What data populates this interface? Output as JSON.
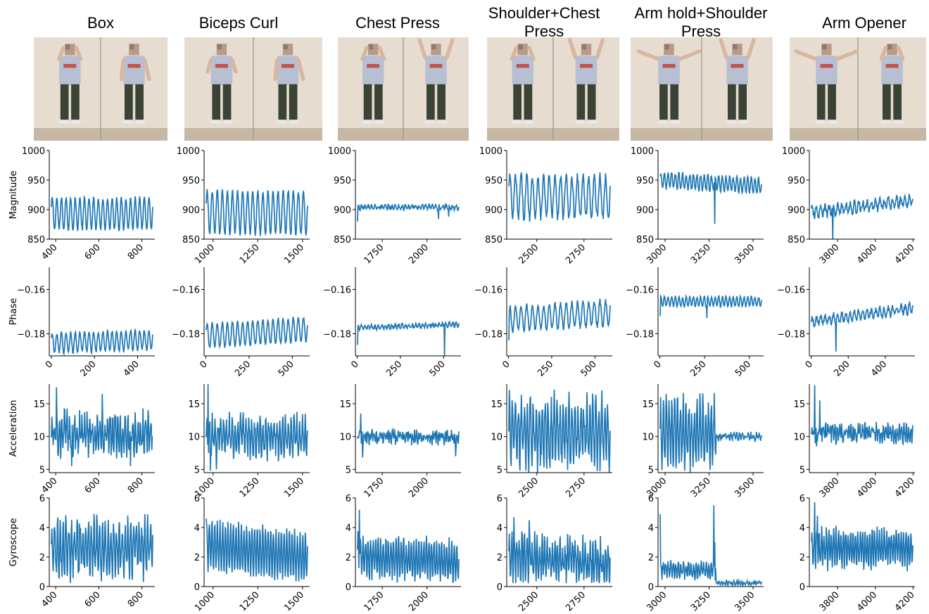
{
  "figure": {
    "row_labels": [
      "Magnitude",
      "Phase",
      "Acceleration",
      "Gyroscope"
    ],
    "colors": {
      "line": "#1f77b4",
      "axis": "#000000",
      "wall": "#e6ddd0",
      "shirt": "#b7bfd3",
      "pants": "#3b4236",
      "floor": "#c7b8a6"
    }
  },
  "exercises": [
    {
      "title": "Box"
    },
    {
      "title": "Biceps Curl"
    },
    {
      "title": "Chest Press"
    },
    {
      "title": "Shoulder+Chest Press"
    },
    {
      "title": "Arm hold+Shoulder Press"
    },
    {
      "title": "Arm Opener"
    }
  ],
  "chart_data": [
    {
      "type": "line",
      "exercise": "Box",
      "ylabel": "Magnitude",
      "xlim": [
        370,
        860
      ],
      "ylim": [
        850,
        1000
      ],
      "xticks": [
        400,
        600,
        800
      ],
      "yticks": [
        850,
        900,
        950,
        1000
      ],
      "signal": {
        "base": 893,
        "amp": 27,
        "cycles": 22,
        "noise": 3,
        "trend": 0
      }
    },
    {
      "type": "line",
      "exercise": "Biceps Curl",
      "ylabel": "",
      "xlim": [
        950,
        1540
      ],
      "ylim": [
        850,
        1000
      ],
      "xticks": [
        1000,
        1250,
        1500
      ],
      "yticks": [
        850,
        900,
        950,
        1000
      ],
      "signal": {
        "base": 895,
        "amp": 37,
        "cycles": 20,
        "noise": 3,
        "trend": 0
      }
    },
    {
      "type": "line",
      "exercise": "Chest Press",
      "ylabel": "",
      "xlim": [
        1600,
        2190
      ],
      "ylim": [
        850,
        1000
      ],
      "xticks": [
        1750,
        2000
      ],
      "yticks": [
        850,
        900,
        950,
        1000
      ],
      "signal": {
        "base": 904,
        "amp": 3,
        "cycles": 30,
        "noise": 3,
        "trend": 0,
        "start": 880,
        "spikes": [
          [
            0.8,
            884
          ],
          [
            0.9,
            888
          ]
        ]
      }
    },
    {
      "type": "line",
      "exercise": "Shoulder+Chest Press",
      "ylabel": "",
      "xlim": [
        2340,
        2900
      ],
      "ylim": [
        850,
        1000
      ],
      "xticks": [
        2500,
        2750
      ],
      "yticks": [
        850,
        900,
        950,
        1000
      ],
      "signal": {
        "base": 922,
        "amp": 35,
        "cycles": 18,
        "noise": 8,
        "trend": 0
      }
    },
    {
      "type": "line",
      "exercise": "Arm hold+Shoulder Press",
      "ylabel": "",
      "xlim": [
        2960,
        3560
      ],
      "ylim": [
        850,
        1000
      ],
      "xticks": [
        3000,
        3250,
        3500
      ],
      "yticks": [
        850,
        900,
        950,
        1000
      ],
      "signal": {
        "base": 945,
        "amp": 13,
        "cycles": 28,
        "noise": 3,
        "trend": -10,
        "spikes": [
          [
            0.54,
            876
          ]
        ]
      }
    },
    {
      "type": "line",
      "exercise": "Arm Opener",
      "ylabel": "",
      "xlim": [
        3650,
        4210
      ],
      "ylim": [
        850,
        1000
      ],
      "xticks": [
        3800,
        4000,
        4200
      ],
      "yticks": [
        850,
        900,
        950,
        1000
      ],
      "signal": {
        "base": 905,
        "amp": 8,
        "cycles": 24,
        "noise": 6,
        "trend": 20,
        "spikes": [
          [
            0.21,
            848
          ]
        ]
      }
    },
    {
      "type": "line",
      "exercise": "Box",
      "ylabel": "Phase",
      "xlim": [
        -10,
        480
      ],
      "ylim": [
        -0.19,
        -0.15
      ],
      "xticks": [
        0,
        200,
        400
      ],
      "yticks": [
        -0.18,
        -0.16
      ],
      "signal": {
        "base": -0.1835,
        "amp": 0.0045,
        "cycles": 22,
        "noise": 0.0008,
        "trend": 0.0015
      }
    },
    {
      "type": "line",
      "exercise": "Biceps Curl",
      "ylabel": "",
      "xlim": [
        -10,
        600
      ],
      "ylim": [
        -0.19,
        -0.15
      ],
      "xticks": [
        0,
        250,
        500
      ],
      "yticks": [
        -0.18,
        -0.16
      ],
      "signal": {
        "base": -0.1795,
        "amp": 0.0055,
        "cycles": 20,
        "noise": 0.0006,
        "trend": 0.003
      }
    },
    {
      "type": "line",
      "exercise": "Chest Press",
      "ylabel": "",
      "xlim": [
        -10,
        600
      ],
      "ylim": [
        -0.19,
        -0.15
      ],
      "xticks": [
        0,
        250,
        500
      ],
      "yticks": [
        -0.18,
        -0.16
      ],
      "signal": {
        "base": -0.1765,
        "amp": 0.0008,
        "cycles": 30,
        "noise": 0.0007,
        "trend": 0.0015,
        "start": -0.185,
        "spikes": [
          [
            0.86,
            -0.19
          ]
        ]
      }
    },
    {
      "type": "line",
      "exercise": "Shoulder+Chest Press",
      "ylabel": "",
      "xlim": [
        -10,
        600
      ],
      "ylim": [
        -0.19,
        -0.15
      ],
      "xticks": [
        0,
        250,
        500
      ],
      "yticks": [
        -0.18,
        -0.16
      ],
      "signal": {
        "base": -0.172,
        "amp": 0.0055,
        "cycles": 18,
        "noise": 0.0012,
        "trend": 0.003,
        "start": -0.183
      }
    },
    {
      "type": "line",
      "exercise": "Arm hold+Shoulder Press",
      "ylabel": "",
      "xlim": [
        -10,
        580
      ],
      "ylim": [
        -0.19,
        -0.15
      ],
      "xticks": [
        0,
        250,
        500
      ],
      "yticks": [
        -0.18,
        -0.16
      ],
      "signal": {
        "base": -0.1655,
        "amp": 0.0022,
        "cycles": 28,
        "noise": 0.0005,
        "trend": 0,
        "start": -0.172,
        "spikes": [
          [
            0.46,
            -0.173
          ]
        ]
      }
    },
    {
      "type": "line",
      "exercise": "Arm Opener",
      "ylabel": "",
      "xlim": [
        -10,
        560
      ],
      "ylim": [
        -0.19,
        -0.15
      ],
      "xticks": [
        0,
        200,
        400
      ],
      "yticks": [
        -0.18,
        -0.16
      ],
      "signal": {
        "base": -0.1715,
        "amp": 0.002,
        "cycles": 24,
        "noise": 0.0012,
        "trend": 0.006,
        "spikes": [
          [
            0.24,
            -0.188
          ]
        ]
      }
    },
    {
      "type": "line",
      "exercise": "Box",
      "ylabel": "Acceleration",
      "xlim": [
        370,
        860
      ],
      "ylim": [
        4.5,
        18
      ],
      "xticks": [
        400,
        600,
        800
      ],
      "yticks": [
        5,
        10,
        15
      ],
      "signal": {
        "base": 10.5,
        "amp": 2.3,
        "cycles": 40,
        "noise": 1.8,
        "trend": 0,
        "spikes": [
          [
            0.05,
            17.5
          ],
          [
            0.2,
            5.5
          ],
          [
            0.5,
            16.5
          ],
          [
            0.78,
            5.5
          ]
        ]
      }
    },
    {
      "type": "line",
      "exercise": "Biceps Curl",
      "ylabel": "",
      "xlim": [
        950,
        1540
      ],
      "ylim": [
        4.5,
        18
      ],
      "xticks": [
        1000,
        1250,
        1500
      ],
      "yticks": [
        5,
        10,
        15
      ],
      "signal": {
        "base": 10,
        "amp": 2.5,
        "cycles": 36,
        "noise": 1.4,
        "trend": 0,
        "spikes": [
          [
            0.02,
            18
          ],
          [
            0.04,
            4.8
          ],
          [
            0.1,
            5
          ]
        ]
      }
    },
    {
      "type": "line",
      "exercise": "Chest Press",
      "ylabel": "",
      "xlim": [
        1600,
        2190
      ],
      "ylim": [
        4.5,
        18
      ],
      "xticks": [
        1750,
        2000
      ],
      "yticks": [
        5,
        10,
        15
      ],
      "signal": {
        "base": 10,
        "amp": 0.6,
        "cycles": 50,
        "noise": 0.8,
        "trend": 0,
        "spikes": [
          [
            0.03,
            13.5
          ],
          [
            0.05,
            6.8
          ],
          [
            0.97,
            7
          ]
        ]
      }
    },
    {
      "type": "line",
      "exercise": "Shoulder+Chest Press",
      "ylabel": "",
      "xlim": [
        2340,
        2900
      ],
      "ylim": [
        4.5,
        18
      ],
      "xticks": [
        2500,
        2750
      ],
      "yticks": [
        5,
        10,
        15
      ],
      "signal": {
        "base": 10.5,
        "amp": 4.5,
        "cycles": 34,
        "noise": 2.4,
        "trend": 0
      }
    },
    {
      "type": "line",
      "exercise": "Arm hold+Shoulder Press",
      "ylabel": "",
      "xlim": [
        2960,
        3560
      ],
      "ylim": [
        4.5,
        18
      ],
      "xticks": [
        3000,
        3250,
        3500
      ],
      "yticks": [
        5,
        10,
        15
      ],
      "signal": {
        "base": 10.5,
        "amp": 4.5,
        "cycles": 36,
        "noise": 2,
        "trend": 0,
        "split": [
          0.55,
          10,
          0.35,
          0.4
        ]
      }
    },
    {
      "type": "line",
      "exercise": "Arm Opener",
      "ylabel": "",
      "xlim": [
        3650,
        4210
      ],
      "ylim": [
        4.5,
        18
      ],
      "xticks": [
        3800,
        4000,
        4200
      ],
      "yticks": [
        5,
        10,
        15
      ],
      "signal": {
        "base": 10.5,
        "amp": 0.8,
        "cycles": 44,
        "noise": 1,
        "trend": 0,
        "spikes": [
          [
            0.03,
            17.8
          ],
          [
            0.05,
            8.5
          ],
          [
            0.08,
            15.5
          ]
        ]
      }
    },
    {
      "type": "line",
      "exercise": "Box",
      "ylabel": "Gyroscope",
      "xlim": [
        370,
        860
      ],
      "ylim": [
        0,
        6
      ],
      "xticks": [
        400,
        600,
        800
      ],
      "yticks": [
        0,
        2,
        4,
        6
      ],
      "signal": {
        "base": 2.6,
        "amp": 1.6,
        "cycles": 36,
        "noise": 0.9,
        "trend": 0,
        "floor": 0.2
      }
    },
    {
      "type": "line",
      "exercise": "Biceps Curl",
      "ylabel": "",
      "xlim": [
        950,
        1540
      ],
      "ylim": [
        0,
        6
      ],
      "xticks": [
        1000,
        1250,
        1500
      ],
      "yticks": [
        0,
        2,
        4,
        6
      ],
      "signal": {
        "base": 2.4,
        "amp": 1.6,
        "cycles": 38,
        "noise": 0.3,
        "trend": -0.8,
        "floor": 0.1,
        "start": 4.6
      }
    },
    {
      "type": "line",
      "exercise": "Chest Press",
      "ylabel": "",
      "xlim": [
        1600,
        2190
      ],
      "ylim": [
        0,
        6
      ],
      "xticks": [
        1750,
        2000
      ],
      "yticks": [
        0,
        2,
        4,
        6
      ],
      "signal": {
        "base": 1.9,
        "amp": 1.3,
        "cycles": 40,
        "noise": 0.4,
        "trend": -0.4,
        "floor": 0.2,
        "spikes": [
          [
            0.02,
            5.2
          ]
        ]
      }
    },
    {
      "type": "line",
      "exercise": "Shoulder+Chest Press",
      "ylabel": "",
      "xlim": [
        2340,
        2900
      ],
      "ylim": [
        0,
        6
      ],
      "xticks": [
        2500,
        2750
      ],
      "yticks": [
        0,
        2,
        4,
        6
      ],
      "signal": {
        "base": 1.8,
        "amp": 1.2,
        "cycles": 40,
        "noise": 0.7,
        "trend": -0.5,
        "floor": 0.2,
        "spikes": [
          [
            0.05,
            4.7
          ],
          [
            0.2,
            4.5
          ]
        ]
      }
    },
    {
      "type": "line",
      "exercise": "Arm hold+Shoulder Press",
      "ylabel": "",
      "xlim": [
        2960,
        3560
      ],
      "ylim": [
        0,
        6
      ],
      "xticks": [
        3000,
        3250,
        3500
      ],
      "yticks": [
        0,
        2,
        4,
        6
      ],
      "signal": {
        "base": 1.1,
        "amp": 0.4,
        "cycles": 40,
        "noise": 0.3,
        "trend": 0,
        "floor": 0.05,
        "spikes": [
          [
            0.0,
            4.9
          ],
          [
            0.53,
            5.5
          ],
          [
            0.54,
            3.0
          ]
        ],
        "split": [
          0.55,
          0.25,
          0.1,
          0.1
        ]
      }
    },
    {
      "type": "line",
      "exercise": "Arm Opener",
      "ylabel": "",
      "xlim": [
        3650,
        4210
      ],
      "ylim": [
        0,
        6
      ],
      "xticks": [
        3800,
        4000,
        4200
      ],
      "yticks": [
        0,
        2,
        4,
        6
      ],
      "signal": {
        "base": 2.6,
        "amp": 1.2,
        "cycles": 42,
        "noise": 0.4,
        "trend": 0,
        "floor": 0.4,
        "spikes": [
          [
            0.03,
            5.7
          ],
          [
            0.06,
            4.8
          ]
        ]
      }
    }
  ]
}
